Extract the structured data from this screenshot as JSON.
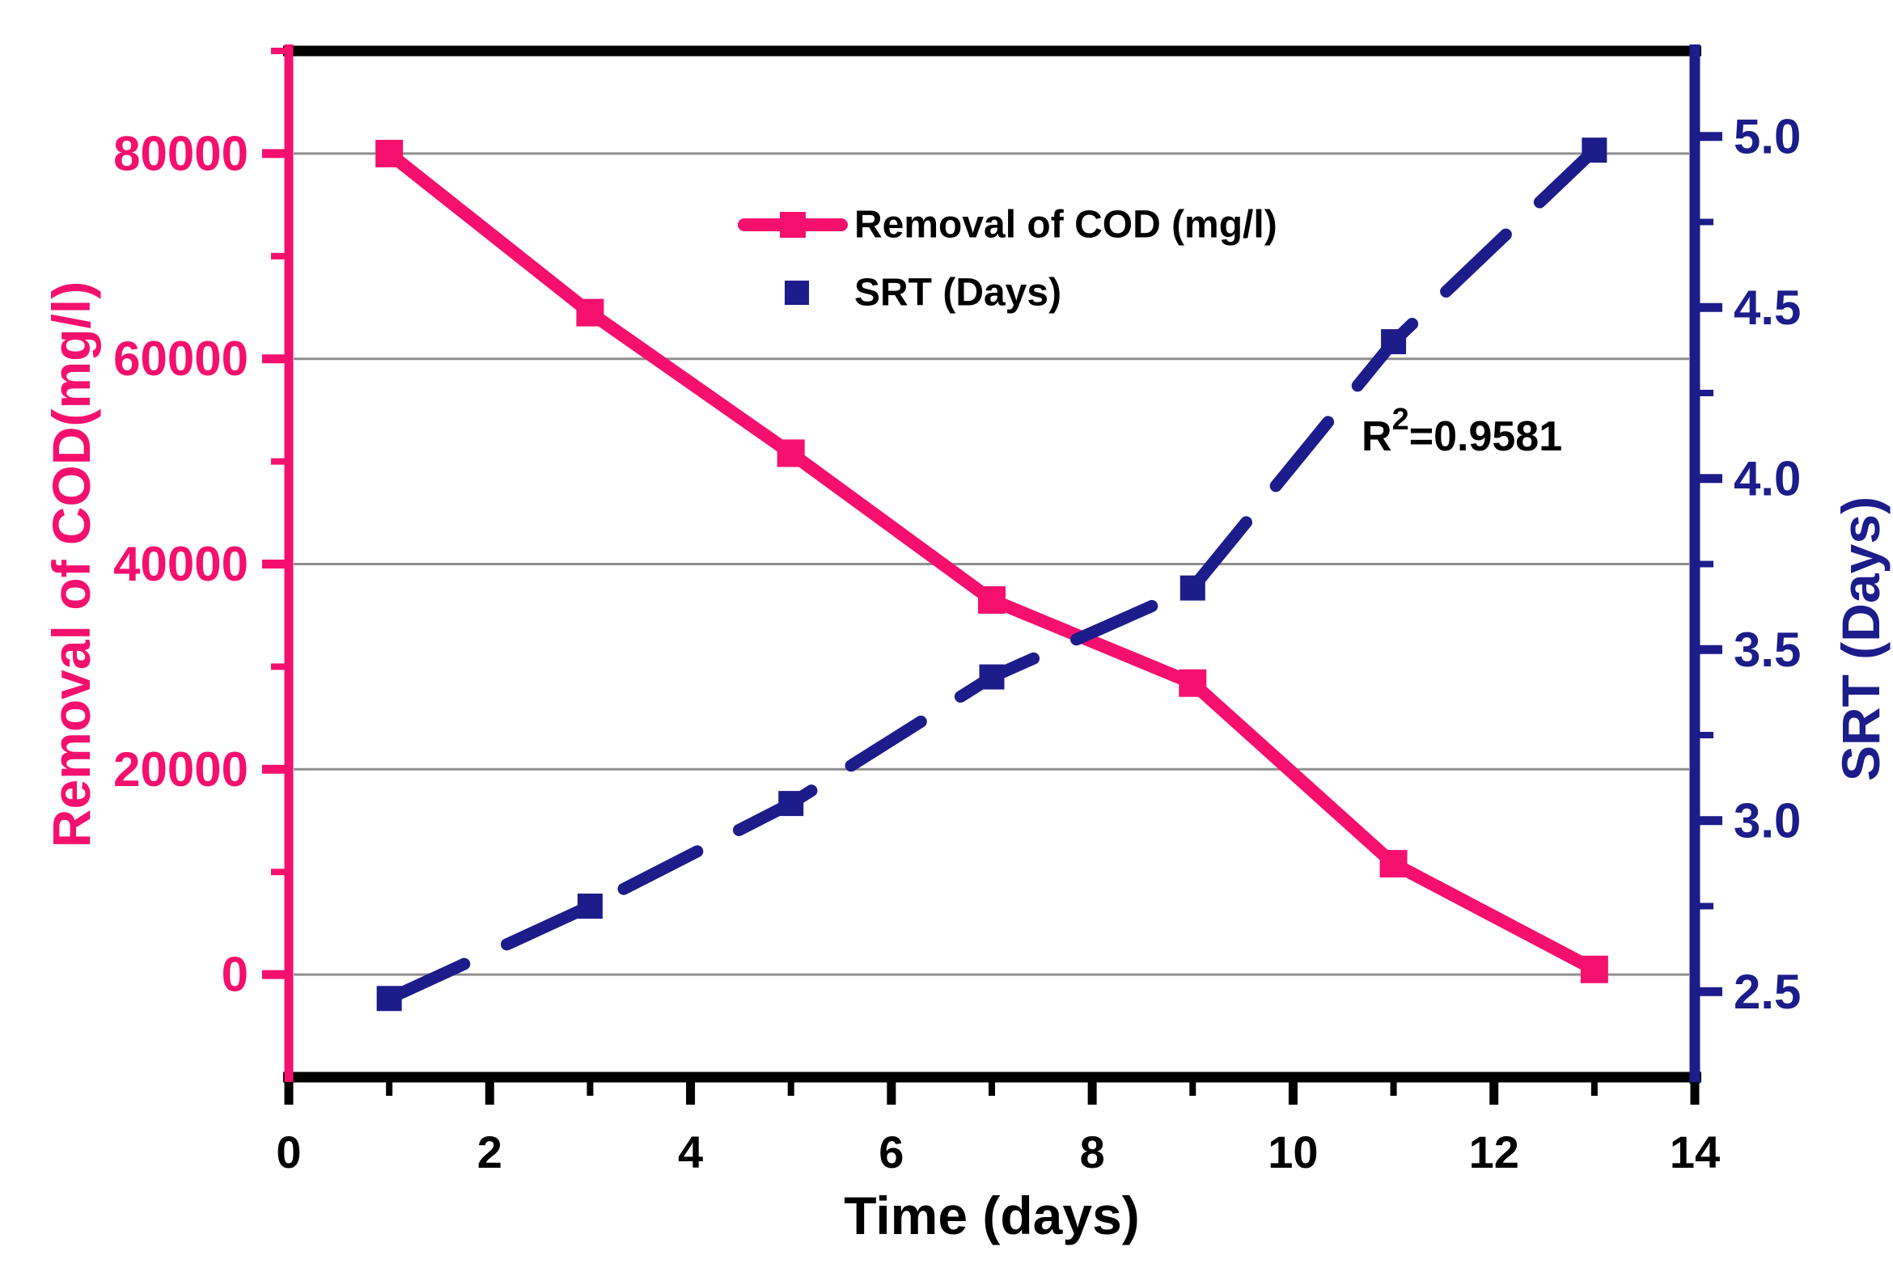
{
  "figure": {
    "background": "#ffffff",
    "legend_items": [
      {
        "label": "Removal of COD (mg/l)",
        "glyph": "line-with-square-marker",
        "color": "#f5106e"
      },
      {
        "label": "SRT (Days)",
        "glyph": "square-marker",
        "color": "#1c1c8a"
      }
    ],
    "annotation": {
      "full_text": "R²=0.9581",
      "prefix": "R",
      "superscript": "2",
      "suffix": "=0.9581",
      "color": "#000000"
    }
  },
  "chart_data": {
    "type": "line",
    "title": "",
    "x": [
      1,
      3,
      5,
      7,
      9,
      11,
      13
    ],
    "series": [
      {
        "name": "Removal of COD (mg/l)",
        "axis": "left",
        "color": "#f5106e",
        "line_style": "solid",
        "marker": "square",
        "values": [
          80000,
          64500,
          50800,
          36500,
          28400,
          10800,
          500
        ]
      },
      {
        "name": "SRT (Days)",
        "axis": "right",
        "color": "#1c1c8a",
        "line_style": "dashed",
        "marker": "square",
        "values": [
          2.48,
          2.75,
          3.05,
          3.42,
          3.68,
          4.4,
          4.96
        ]
      }
    ],
    "x_axis": {
      "label": "Time (days)",
      "min": 0,
      "max": 14,
      "major_ticks": [
        0,
        2,
        4,
        6,
        8,
        10,
        12,
        14
      ],
      "tick_labels": [
        "0",
        "2",
        "4",
        "6",
        "8",
        "10",
        "12",
        "14"
      ],
      "minor_ticks": [
        1,
        3,
        5,
        7,
        9,
        11,
        13
      ],
      "color": "#000000"
    },
    "left_axis": {
      "label": "Removal of COD(mg/l)",
      "min": -10000,
      "max": 90000,
      "major_ticks": [
        0,
        20000,
        40000,
        60000,
        80000
      ],
      "tick_labels": [
        "0",
        "20000",
        "40000",
        "60000",
        "80000"
      ],
      "minor_ticks": [
        10000,
        30000,
        50000,
        70000,
        90000
      ],
      "color": "#f5106e"
    },
    "right_axis": {
      "label": "SRT (Days)",
      "min": 2.25,
      "max": 5.25,
      "major_ticks": [
        2.5,
        3.0,
        3.5,
        4.0,
        4.5,
        5.0
      ],
      "tick_labels": [
        "2.5",
        "3.0",
        "3.5",
        "4.0",
        "4.5",
        "5.0"
      ],
      "minor_ticks": [
        2.75,
        3.25,
        3.75,
        4.25,
        4.75
      ],
      "color": "#1c1c8a"
    },
    "grid": {
      "show": true,
      "color": "#8f8f8f",
      "lines_at": "left-axis-major-ticks"
    },
    "legend_position": "upper-center-inside",
    "annotation_r_squared": 0.9581
  }
}
